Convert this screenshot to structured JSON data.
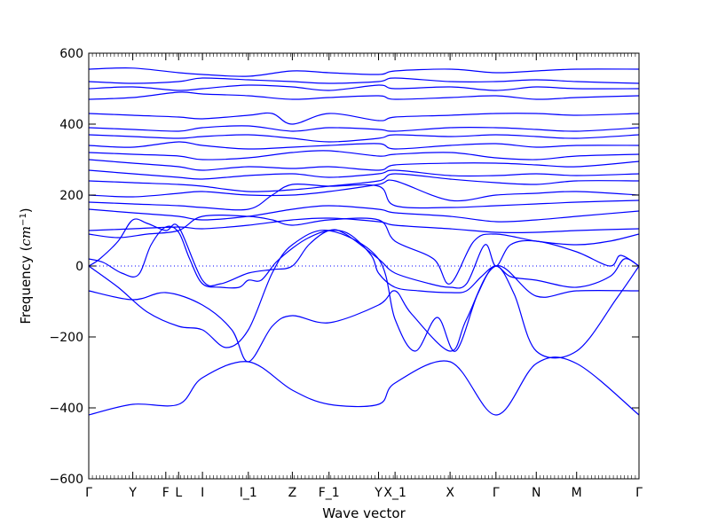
{
  "chart_data": {
    "type": "line",
    "title": "",
    "xlabel": "Wave vector",
    "ylabel": {
      "prefix": "Frequency (",
      "unit_base": "cm",
      "unit_exp": "−1",
      "suffix": ")"
    },
    "ylim": [
      -600,
      600
    ],
    "yticks": [
      "600",
      "400",
      "200",
      "0",
      "−200",
      "−400",
      "−600"
    ],
    "ytick_values": [
      600,
      400,
      200,
      0,
      -200,
      -400,
      -600
    ],
    "xlim": [
      0,
      15
    ],
    "xticks": [
      {
        "label": "Γ",
        "x": 0
      },
      {
        "label": "Y",
        "x": 1.2
      },
      {
        "label": "F",
        "x": 2.1
      },
      {
        "label": "L",
        "x": 2.45
      },
      {
        "label": "I",
        "x": 3.1
      },
      {
        "label": "I_1",
        "x": 4.35
      },
      {
        "label": "Z",
        "x": 5.55
      },
      {
        "label": "F_1",
        "x": 6.55
      },
      {
        "label": "Y",
        "x": 7.9
      },
      {
        "label": "X_1",
        "x": 8.35
      },
      {
        "label": "X",
        "x": 9.85
      },
      {
        "label": "Γ",
        "x": 11.1
      },
      {
        "label": "N",
        "x": 12.2
      },
      {
        "label": "M",
        "x": 13.3
      },
      {
        "label": "Γ",
        "x": 15
      }
    ],
    "line_color": "#0000ff",
    "zero_line": {
      "y": 0,
      "style": "dotted",
      "color": "#0000ff"
    },
    "grid": false,
    "legend": "none",
    "series": [
      {
        "x": [
          0,
          1.2,
          2.45,
          3.1,
          4.35,
          5.55,
          6.55,
          7.9,
          8.35,
          9.85,
          11.1,
          12.2,
          13.3,
          15
        ],
        "y": [
          -420,
          -390,
          -390,
          -315,
          -270,
          -350,
          -390,
          -390,
          -330,
          -270,
          -420,
          -275,
          -275,
          -420
        ]
      },
      {
        "x": [
          0,
          1.2,
          2.1,
          3.1,
          3.9,
          4.35,
          5.0,
          5.55,
          6.55,
          7.9,
          8.35,
          8.8,
          9.85,
          10.3,
          11.1,
          12.2,
          13.3,
          15
        ],
        "y": [
          -70,
          -95,
          -75,
          -110,
          -180,
          -270,
          -170,
          -140,
          -160,
          -110,
          -70,
          -135,
          -240,
          -150,
          0,
          -85,
          -70,
          -70
        ]
      },
      {
        "x": [
          0,
          0.8,
          1.6,
          2.45,
          3.1,
          3.75,
          4.35,
          5.0,
          5.55,
          6.55,
          7.9,
          8.35,
          8.9,
          9.5,
          10.0,
          10.6,
          11.1,
          11.6,
          12.2,
          13.3,
          14.4,
          15
        ],
        "y": [
          0,
          -60,
          -130,
          -170,
          -180,
          -230,
          -180,
          -20,
          60,
          100,
          20,
          -150,
          -240,
          -145,
          -240,
          -80,
          0,
          -80,
          -240,
          -240,
          -90,
          0
        ]
      },
      {
        "x": [
          0,
          0.4,
          0.9,
          1.35,
          1.7,
          2.1,
          2.45,
          2.75,
          3.1,
          3.6,
          4.1,
          4.35,
          4.7,
          5.1,
          5.55,
          6.0,
          6.55,
          7.1,
          7.7,
          7.9,
          8.35,
          9.0,
          9.85,
          10.3,
          10.7,
          11.1,
          11.5,
          12.2,
          13.3,
          14.2,
          14.6,
          15
        ],
        "y": [
          20,
          10,
          -20,
          -25,
          60,
          110,
          95,
          20,
          -50,
          -60,
          -60,
          -40,
          -40,
          10,
          50,
          80,
          100,
          90,
          30,
          -20,
          -60,
          -70,
          -75,
          -70,
          -30,
          0,
          -30,
          -40,
          -60,
          -30,
          20,
          0
        ]
      },
      {
        "x": [
          0,
          0.3,
          0.8,
          1.2,
          1.6,
          2.1,
          2.45,
          3.1,
          3.6,
          4.35,
          5.0,
          5.55,
          6.0,
          6.55,
          7.0,
          7.9,
          8.35,
          9.3,
          9.85,
          10.3,
          10.8,
          11.1,
          11.5,
          12.2,
          13.3,
          14.2,
          14.5,
          15
        ],
        "y": [
          0,
          20,
          70,
          130,
          120,
          100,
          110,
          -40,
          -50,
          -20,
          -10,
          0,
          60,
          100,
          90,
          20,
          -20,
          -50,
          -60,
          -50,
          60,
          0,
          60,
          70,
          40,
          0,
          30,
          0
        ]
      },
      {
        "x": [
          0,
          0.8,
          1.6,
          2.45,
          3.1,
          4.35,
          5.0,
          5.55,
          6.55,
          7.9,
          8.35,
          9.4,
          9.85,
          10.5,
          11.1,
          12.2,
          13.3,
          14.2,
          15
        ],
        "y": [
          90,
          80,
          90,
          100,
          140,
          140,
          130,
          115,
          130,
          130,
          70,
          20,
          -50,
          70,
          90,
          70,
          60,
          70,
          90
        ]
      },
      {
        "x": [
          0,
          1.2,
          2.45,
          3.1,
          4.35,
          5.55,
          6.55,
          7.9,
          8.35,
          9.85,
          11.1,
          12.2,
          13.3,
          15
        ],
        "y": [
          100,
          105,
          110,
          105,
          115,
          130,
          135,
          125,
          115,
          105,
          95,
          95,
          100,
          105
        ]
      },
      {
        "x": [
          0,
          1.2,
          2.45,
          3.1,
          4.35,
          5.55,
          6.55,
          7.9,
          8.35,
          9.85,
          11.1,
          12.2,
          13.3,
          15
        ],
        "y": [
          160,
          150,
          140,
          130,
          140,
          160,
          170,
          160,
          150,
          140,
          125,
          130,
          140,
          155
        ]
      },
      {
        "x": [
          0,
          1.2,
          2.45,
          3.1,
          4.35,
          5.0,
          5.55,
          6.55,
          7.9,
          8.35,
          9.85,
          11.1,
          12.2,
          13.3,
          15
        ],
        "y": [
          180,
          175,
          170,
          165,
          160,
          200,
          230,
          225,
          225,
          170,
          165,
          170,
          175,
          180,
          185
        ]
      },
      {
        "x": [
          0,
          1.2,
          2.45,
          3.1,
          4.35,
          5.55,
          6.55,
          7.9,
          8.35,
          9.85,
          11.1,
          12.2,
          13.3,
          15
        ],
        "y": [
          200,
          195,
          205,
          210,
          200,
          200,
          210,
          230,
          240,
          185,
          200,
          205,
          210,
          200
        ]
      },
      {
        "x": [
          0,
          1.2,
          2.45,
          3.1,
          4.35,
          5.55,
          6.55,
          7.9,
          8.35,
          9.85,
          11.1,
          12.2,
          13.3,
          15
        ],
        "y": [
          240,
          235,
          230,
          225,
          210,
          215,
          225,
          240,
          260,
          245,
          235,
          230,
          240,
          240
        ]
      },
      {
        "x": [
          0,
          1.2,
          2.45,
          3.1,
          4.35,
          5.55,
          6.55,
          7.9,
          8.35,
          9.85,
          11.1,
          12.2,
          13.3,
          15
        ],
        "y": [
          270,
          260,
          250,
          245,
          255,
          260,
          250,
          260,
          270,
          255,
          255,
          260,
          255,
          260
        ]
      },
      {
        "x": [
          0,
          1.2,
          2.45,
          3.1,
          4.35,
          5.55,
          6.55,
          7.9,
          8.35,
          9.85,
          11.1,
          12.2,
          13.3,
          15
        ],
        "y": [
          300,
          290,
          280,
          270,
          280,
          275,
          280,
          270,
          285,
          290,
          290,
          285,
          280,
          295
        ]
      },
      {
        "x": [
          0,
          1.2,
          2.45,
          3.1,
          4.35,
          5.55,
          6.55,
          7.9,
          8.35,
          9.85,
          11.1,
          12.2,
          13.3,
          15
        ],
        "y": [
          320,
          315,
          310,
          300,
          305,
          320,
          325,
          310,
          315,
          320,
          305,
          300,
          310,
          315
        ]
      },
      {
        "x": [
          0,
          1.2,
          2.45,
          3.1,
          4.35,
          5.55,
          6.55,
          7.9,
          8.35,
          9.85,
          11.1,
          12.2,
          13.3,
          15
        ],
        "y": [
          340,
          335,
          350,
          340,
          330,
          335,
          340,
          345,
          330,
          340,
          345,
          335,
          340,
          340
        ]
      },
      {
        "x": [
          0,
          1.2,
          2.45,
          3.1,
          4.35,
          5.55,
          6.55,
          7.9,
          8.35,
          9.85,
          11.1,
          12.2,
          13.3,
          15
        ],
        "y": [
          370,
          365,
          360,
          365,
          370,
          360,
          350,
          360,
          370,
          365,
          370,
          365,
          360,
          370
        ]
      },
      {
        "x": [
          0,
          1.2,
          2.45,
          3.1,
          4.35,
          5.55,
          6.55,
          7.9,
          8.35,
          9.85,
          11.1,
          12.2,
          13.3,
          15
        ],
        "y": [
          390,
          385,
          380,
          390,
          395,
          380,
          390,
          385,
          380,
          390,
          390,
          385,
          380,
          390
        ]
      },
      {
        "x": [
          0,
          1.2,
          2.45,
          3.1,
          4.35,
          5.0,
          5.55,
          6.55,
          7.9,
          8.35,
          9.85,
          11.1,
          12.2,
          13.3,
          15
        ],
        "y": [
          430,
          425,
          420,
          415,
          425,
          430,
          400,
          430,
          410,
          420,
          425,
          430,
          430,
          425,
          430
        ]
      },
      {
        "x": [
          0,
          1.2,
          2.45,
          3.1,
          4.35,
          5.55,
          6.55,
          7.9,
          8.35,
          9.85,
          11.1,
          12.2,
          13.3,
          15
        ],
        "y": [
          470,
          475,
          490,
          485,
          480,
          470,
          475,
          480,
          470,
          475,
          480,
          470,
          475,
          480
        ]
      },
      {
        "x": [
          0,
          1.2,
          2.45,
          3.1,
          4.35,
          5.55,
          6.55,
          7.9,
          8.35,
          9.85,
          11.1,
          12.2,
          13.3,
          15
        ],
        "y": [
          500,
          505,
          495,
          500,
          510,
          505,
          495,
          510,
          500,
          505,
          495,
          505,
          500,
          500
        ]
      },
      {
        "x": [
          0,
          1.2,
          2.45,
          3.1,
          4.35,
          5.55,
          6.55,
          7.9,
          8.35,
          9.85,
          11.1,
          12.2,
          13.3,
          15
        ],
        "y": [
          520,
          515,
          520,
          530,
          525,
          520,
          515,
          520,
          530,
          520,
          520,
          525,
          520,
          515
        ]
      },
      {
        "x": [
          0,
          1.2,
          2.45,
          3.1,
          4.35,
          5.55,
          6.55,
          7.9,
          8.35,
          9.85,
          11.1,
          12.2,
          13.3,
          15
        ],
        "y": [
          555,
          558,
          545,
          540,
          535,
          550,
          545,
          540,
          550,
          555,
          545,
          550,
          555,
          555
        ]
      }
    ]
  }
}
